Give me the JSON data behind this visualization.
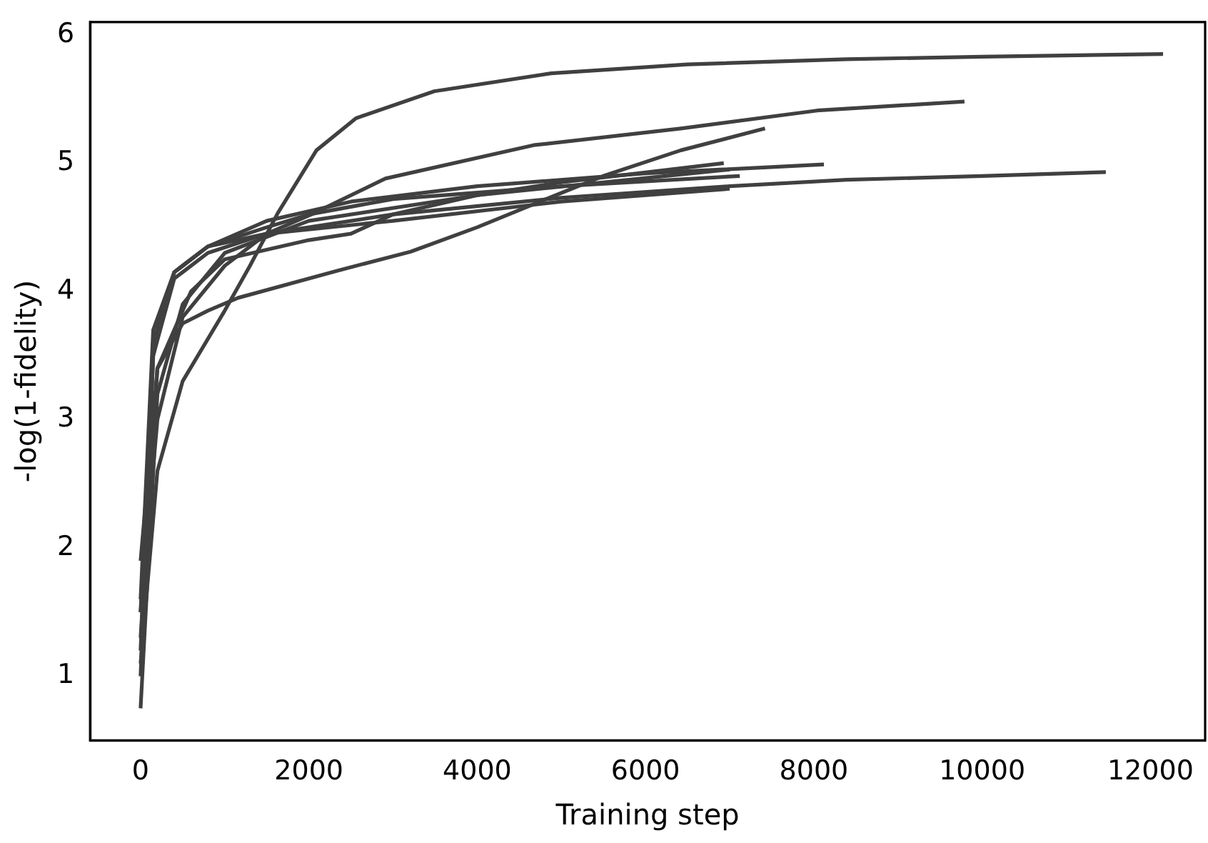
{
  "chart_data": {
    "type": "line",
    "xlabel": "Training step",
    "ylabel": "-log(1-fidelity)",
    "xlim": [
      -600,
      12650
    ],
    "ylim": [
      0.5,
      6.1
    ],
    "xticks": [
      0,
      2000,
      4000,
      6000,
      8000,
      10000,
      12000
    ],
    "yticks": [
      1,
      2,
      3,
      4,
      5,
      6
    ],
    "marker": "none",
    "line_style": "solid",
    "series": [
      {
        "color": "#404040",
        "x": [
          0,
          200,
          500,
          1000,
          1300,
          1630,
          2090,
          2560,
          3490,
          4880,
          6500,
          8390,
          10000,
          12150
        ],
        "values": [
          1.1,
          2.6,
          3.3,
          3.85,
          4.2,
          4.61,
          5.1,
          5.35,
          5.56,
          5.7,
          5.77,
          5.81,
          5.83,
          5.85
        ]
      },
      {
        "color": "#404040",
        "x": [
          0,
          200,
          500,
          1000,
          1500,
          2030,
          2910,
          4670,
          6420,
          8040,
          9790
        ],
        "values": [
          1.5,
          3.0,
          3.8,
          4.2,
          4.45,
          4.6,
          4.88,
          5.14,
          5.27,
          5.41,
          5.48
        ]
      },
      {
        "color": "#404040",
        "x": [
          0,
          200,
          500,
          800,
          1160,
          2330,
          3210,
          4000,
          4670,
          5500,
          6420,
          7420
        ],
        "values": [
          1.9,
          3.4,
          3.75,
          3.85,
          3.95,
          4.16,
          4.31,
          4.5,
          4.68,
          4.9,
          5.1,
          5.27
        ]
      },
      {
        "color": "#404040",
        "x": [
          0,
          150,
          400,
          800,
          1500,
          2500,
          4000,
          6000,
          8120
        ],
        "values": [
          1.5,
          3.6,
          4.15,
          4.35,
          4.55,
          4.7,
          4.82,
          4.92,
          4.99
        ]
      },
      {
        "color": "#404040",
        "x": [
          0,
          150,
          400,
          800,
          1500,
          3000,
          5000,
          7000,
          8390,
          10000,
          11470
        ],
        "values": [
          1.2,
          3.5,
          4.1,
          4.3,
          4.45,
          4.6,
          4.73,
          4.82,
          4.87,
          4.9,
          4.93
        ]
      },
      {
        "color": "#404040",
        "x": [
          0,
          200,
          600,
          1000,
          2000,
          2500,
          3000,
          4000,
          5000,
          6930
        ],
        "values": [
          1.3,
          3.4,
          4.0,
          4.25,
          4.4,
          4.45,
          4.6,
          4.75,
          4.85,
          5.0
        ]
      },
      {
        "color": "#404040",
        "x": [
          0,
          150,
          400,
          800,
          1500,
          2000,
          3000,
          5000,
          7120
        ],
        "values": [
          1.6,
          3.7,
          4.15,
          4.35,
          4.5,
          4.6,
          4.72,
          4.82,
          4.9
        ]
      },
      {
        "color": "#404040",
        "x": [
          0,
          150,
          400,
          800,
          1500,
          3000,
          5000,
          7000
        ],
        "values": [
          1.0,
          3.5,
          4.15,
          4.35,
          4.45,
          4.55,
          4.7,
          4.8
        ]
      },
      {
        "color": "#404040",
        "x": [
          0,
          200,
          500,
          1000,
          2000,
          4000,
          7000
        ],
        "values": [
          0.75,
          3.2,
          3.9,
          4.3,
          4.55,
          4.75,
          4.95
        ]
      }
    ]
  }
}
